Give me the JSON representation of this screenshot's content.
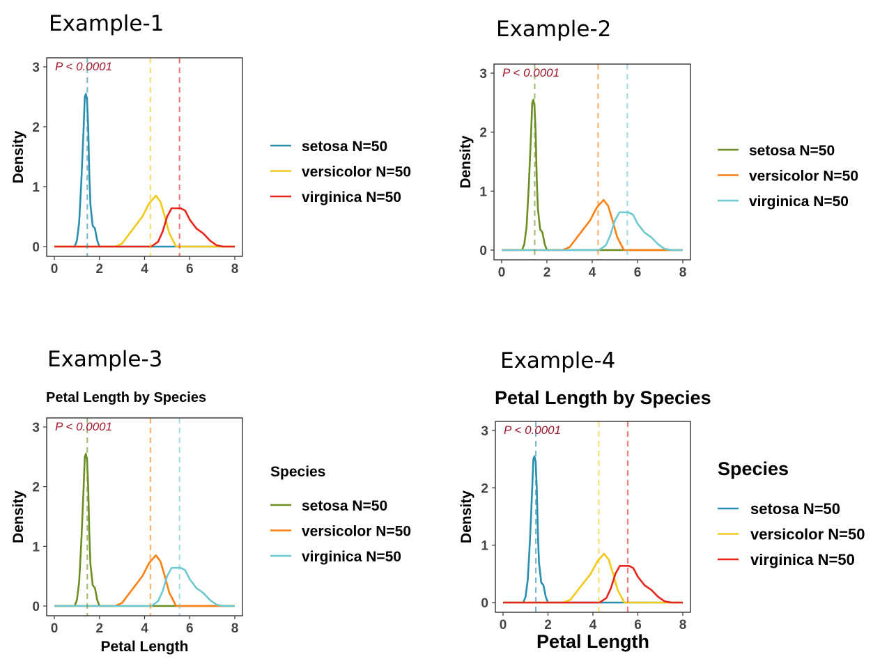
{
  "captions": [
    "Example-1",
    "Example-2",
    "Example-3",
    "Example-4"
  ],
  "chart_data": [
    {
      "type": "line",
      "title": "",
      "xlabel": "",
      "ylabel": "Density",
      "xlim": [
        0,
        8
      ],
      "ylim": [
        0,
        3
      ],
      "xticks": [
        "0",
        "2",
        "4",
        "6",
        "8"
      ],
      "yticks": [
        "0",
        "1",
        "2",
        "3"
      ],
      "annotation": "P < 0.0001",
      "legend_title": "",
      "legend_position": "right",
      "grid": false,
      "colors": [
        "#2a8fae",
        "#f2c916",
        "#e8231a"
      ],
      "vlines": [
        1.46,
        4.26,
        5.55
      ],
      "series": [
        {
          "name": "setosa N=50",
          "x": [
            0,
            0.9,
            1.0,
            1.1,
            1.2,
            1.3,
            1.35,
            1.4,
            1.45,
            1.5,
            1.55,
            1.6,
            1.7,
            1.8,
            1.9,
            2.0,
            8
          ],
          "y": [
            0,
            0,
            0.1,
            0.4,
            1.1,
            2.0,
            2.5,
            2.55,
            2.45,
            2.0,
            1.2,
            0.7,
            0.35,
            0.3,
            0.1,
            0,
            0
          ]
        },
        {
          "name": "versicolor N=50",
          "x": [
            0,
            2.7,
            3.0,
            3.3,
            3.6,
            3.9,
            4.2,
            4.5,
            4.7,
            4.9,
            5.1,
            5.4,
            8
          ],
          "y": [
            0,
            0,
            0.05,
            0.2,
            0.35,
            0.5,
            0.72,
            0.85,
            0.75,
            0.5,
            0.22,
            0,
            0
          ]
        },
        {
          "name": "virginica N=50",
          "x": [
            0,
            4.3,
            4.6,
            4.8,
            5.0,
            5.2,
            5.4,
            5.6,
            5.8,
            6.0,
            6.3,
            6.6,
            6.9,
            7.2,
            7.5,
            8
          ],
          "y": [
            0,
            0,
            0.08,
            0.25,
            0.5,
            0.64,
            0.64,
            0.64,
            0.6,
            0.45,
            0.3,
            0.22,
            0.1,
            0.02,
            0,
            0
          ]
        }
      ]
    },
    {
      "type": "line",
      "title": "",
      "xlabel": "",
      "ylabel": "Density",
      "xlim": [
        0,
        8
      ],
      "ylim": [
        0,
        3
      ],
      "xticks": [
        "0",
        "2",
        "4",
        "6",
        "8"
      ],
      "yticks": [
        "0",
        "1",
        "2",
        "3"
      ],
      "annotation": "P < 0.0001",
      "legend_title": "",
      "legend_position": "right",
      "grid": false,
      "colors": [
        "#6b8e23",
        "#ff7f0e",
        "#6cc9cf"
      ],
      "vlines": [
        1.46,
        4.26,
        5.55
      ],
      "series": [
        {
          "name": "setosa N=50",
          "x": [
            0,
            0.9,
            1.0,
            1.1,
            1.2,
            1.3,
            1.35,
            1.4,
            1.45,
            1.5,
            1.55,
            1.6,
            1.7,
            1.8,
            1.9,
            2.0,
            8
          ],
          "y": [
            0,
            0,
            0.1,
            0.4,
            1.1,
            2.0,
            2.5,
            2.55,
            2.45,
            2.0,
            1.2,
            0.7,
            0.35,
            0.3,
            0.1,
            0,
            0
          ]
        },
        {
          "name": "versicolor N=50",
          "x": [
            0,
            2.7,
            3.0,
            3.3,
            3.6,
            3.9,
            4.2,
            4.5,
            4.7,
            4.9,
            5.1,
            5.4,
            8
          ],
          "y": [
            0,
            0,
            0.05,
            0.2,
            0.35,
            0.5,
            0.72,
            0.85,
            0.75,
            0.5,
            0.22,
            0,
            0
          ]
        },
        {
          "name": "virginica N=50",
          "x": [
            0,
            4.3,
            4.6,
            4.8,
            5.0,
            5.2,
            5.4,
            5.6,
            5.8,
            6.0,
            6.3,
            6.6,
            6.9,
            7.2,
            7.5,
            8
          ],
          "y": [
            0,
            0,
            0.08,
            0.25,
            0.5,
            0.64,
            0.64,
            0.64,
            0.6,
            0.45,
            0.3,
            0.22,
            0.1,
            0.02,
            0,
            0
          ]
        }
      ]
    },
    {
      "type": "line",
      "title": "Petal Length by Species",
      "xlabel": "Petal Length",
      "ylabel": "Density",
      "xlim": [
        0,
        8
      ],
      "ylim": [
        0,
        3
      ],
      "xticks": [
        "0",
        "2",
        "4",
        "6",
        "8"
      ],
      "yticks": [
        "0",
        "1",
        "2",
        "3"
      ],
      "annotation": "P < 0.0001",
      "legend_title": "Species",
      "legend_position": "right",
      "grid": false,
      "colors": [
        "#6b8e23",
        "#ff7f0e",
        "#6cc9cf"
      ],
      "vlines": [
        1.46,
        4.26,
        5.55
      ],
      "series": [
        {
          "name": "setosa N=50",
          "x": [
            0,
            0.9,
            1.0,
            1.1,
            1.2,
            1.3,
            1.35,
            1.4,
            1.45,
            1.5,
            1.55,
            1.6,
            1.7,
            1.8,
            1.9,
            2.0,
            8
          ],
          "y": [
            0,
            0,
            0.1,
            0.4,
            1.1,
            2.0,
            2.5,
            2.55,
            2.45,
            2.0,
            1.2,
            0.7,
            0.35,
            0.3,
            0.1,
            0,
            0
          ]
        },
        {
          "name": "versicolor N=50",
          "x": [
            0,
            2.7,
            3.0,
            3.3,
            3.6,
            3.9,
            4.2,
            4.5,
            4.7,
            4.9,
            5.1,
            5.4,
            8
          ],
          "y": [
            0,
            0,
            0.05,
            0.2,
            0.35,
            0.5,
            0.72,
            0.85,
            0.75,
            0.5,
            0.22,
            0,
            0
          ]
        },
        {
          "name": "virginica N=50",
          "x": [
            0,
            4.3,
            4.6,
            4.8,
            5.0,
            5.2,
            5.4,
            5.6,
            5.8,
            6.0,
            6.3,
            6.6,
            6.9,
            7.2,
            7.5,
            8
          ],
          "y": [
            0,
            0,
            0.08,
            0.25,
            0.5,
            0.64,
            0.64,
            0.64,
            0.6,
            0.45,
            0.3,
            0.22,
            0.1,
            0.02,
            0,
            0
          ]
        }
      ]
    },
    {
      "type": "line",
      "title": "Petal Length by Species",
      "xlabel": "Petal Length",
      "ylabel": "Density",
      "xlim": [
        0,
        8
      ],
      "ylim": [
        0,
        3
      ],
      "xticks": [
        "0",
        "2",
        "4",
        "6",
        "8"
      ],
      "yticks": [
        "0",
        "1",
        "2",
        "3"
      ],
      "annotation": "P < 0.0001",
      "legend_title": "Species",
      "legend_position": "right",
      "grid": false,
      "colors": [
        "#2a8fae",
        "#f2c916",
        "#e8231a"
      ],
      "vlines": [
        1.46,
        4.26,
        5.55
      ],
      "series": [
        {
          "name": "setosa N=50",
          "x": [
            0,
            0.9,
            1.0,
            1.1,
            1.2,
            1.3,
            1.35,
            1.4,
            1.45,
            1.5,
            1.55,
            1.6,
            1.7,
            1.8,
            1.9,
            2.0,
            8
          ],
          "y": [
            0,
            0,
            0.1,
            0.4,
            1.1,
            2.0,
            2.5,
            2.55,
            2.45,
            2.0,
            1.2,
            0.7,
            0.35,
            0.3,
            0.1,
            0,
            0
          ]
        },
        {
          "name": "versicolor N=50",
          "x": [
            0,
            2.7,
            3.0,
            3.3,
            3.6,
            3.9,
            4.2,
            4.5,
            4.7,
            4.9,
            5.1,
            5.4,
            8
          ],
          "y": [
            0,
            0,
            0.05,
            0.2,
            0.35,
            0.5,
            0.72,
            0.85,
            0.75,
            0.5,
            0.22,
            0,
            0
          ]
        },
        {
          "name": "virginica N=50",
          "x": [
            0,
            4.3,
            4.6,
            4.8,
            5.0,
            5.2,
            5.4,
            5.6,
            5.8,
            6.0,
            6.3,
            6.6,
            6.9,
            7.2,
            7.5,
            8
          ],
          "y": [
            0,
            0,
            0.08,
            0.25,
            0.5,
            0.64,
            0.64,
            0.64,
            0.6,
            0.45,
            0.3,
            0.22,
            0.1,
            0.02,
            0,
            0
          ]
        }
      ]
    }
  ]
}
